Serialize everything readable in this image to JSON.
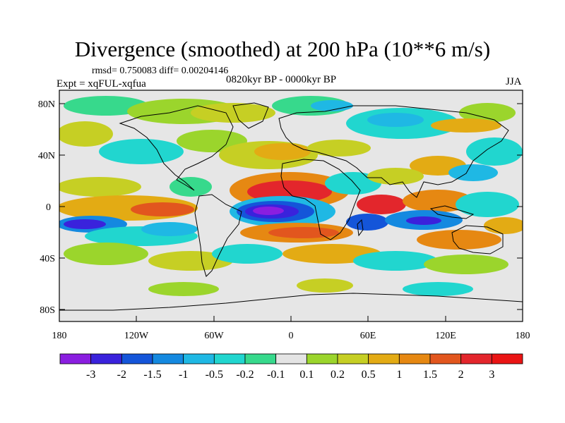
{
  "title": "Divergence (smoothed) at 200 hPa (10**6 m/s)",
  "stats": "rmsd= 0.750083 diff= 0.00204146",
  "experiment": "Expt = xqFUL-xqfua",
  "period": "0820kyr BP - 0000kyr BP",
  "season": "JJA",
  "lat_ticks": [
    "80N",
    "40N",
    "0",
    "40S",
    "80S"
  ],
  "lon_ticks": [
    "180",
    "120W",
    "60W",
    "0",
    "60E",
    "120E",
    "180"
  ],
  "colorbar": {
    "labels": [
      "-3",
      "-2",
      "-1.5",
      "-1",
      "-0.5",
      "-0.2",
      "-0.1",
      "0.1",
      "0.2",
      "0.5",
      "1",
      "1.5",
      "2",
      "3"
    ],
    "colors": [
      "#8a1ee0",
      "#3a22dc",
      "#1455d9",
      "#1489e0",
      "#1fb8e4",
      "#21d6cf",
      "#37d98c",
      "#e4e4e4",
      "#9bd52c",
      "#c6cf24",
      "#e3ab14",
      "#e68812",
      "#e2561e",
      "#e3262c",
      "#ea1414"
    ]
  },
  "colors": {
    "land_outline": "#000000",
    "neutral": "#e6e6e6"
  }
}
